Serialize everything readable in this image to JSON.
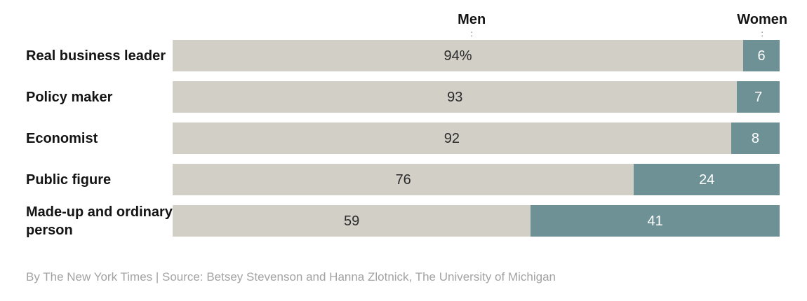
{
  "chart_data": {
    "type": "bar",
    "subtype": "horizontal-stacked",
    "title": "",
    "xlabel": "",
    "ylabel": "",
    "xlim": [
      0,
      100
    ],
    "legend_position": "top",
    "grid": false,
    "tick_glyph": ":",
    "series_headers": {
      "men": "Men",
      "women": "Women"
    },
    "categories": [
      "Real business leader",
      "Policy maker",
      "Economist",
      "Public figure",
      "Made-up and ordinary person"
    ],
    "series": [
      {
        "name": "Men",
        "values": [
          94,
          93,
          92,
          76,
          59
        ]
      },
      {
        "name": "Women",
        "values": [
          6,
          7,
          8,
          24,
          41
        ]
      }
    ],
    "rows": [
      {
        "label": "Real business leader",
        "men": 94,
        "women": 6,
        "men_label": "94%",
        "women_label": "6"
      },
      {
        "label": "Policy maker",
        "men": 93,
        "women": 7,
        "men_label": "93",
        "women_label": "7"
      },
      {
        "label": "Economist",
        "men": 92,
        "women": 8,
        "men_label": "92",
        "women_label": "8"
      },
      {
        "label": "Public figure",
        "men": 76,
        "women": 24,
        "men_label": "76",
        "women_label": "24"
      },
      {
        "label": "Made-up and ordinary person",
        "men": 59,
        "women": 41,
        "men_label": "59",
        "women_label": "41"
      }
    ],
    "colors": {
      "men": "#d2cfc7",
      "women": "#6d9195"
    }
  },
  "footer": {
    "credit": "By The New York Times | Source: Betsey Stevenson and Hanna Zlotnick, The University of Michigan"
  }
}
